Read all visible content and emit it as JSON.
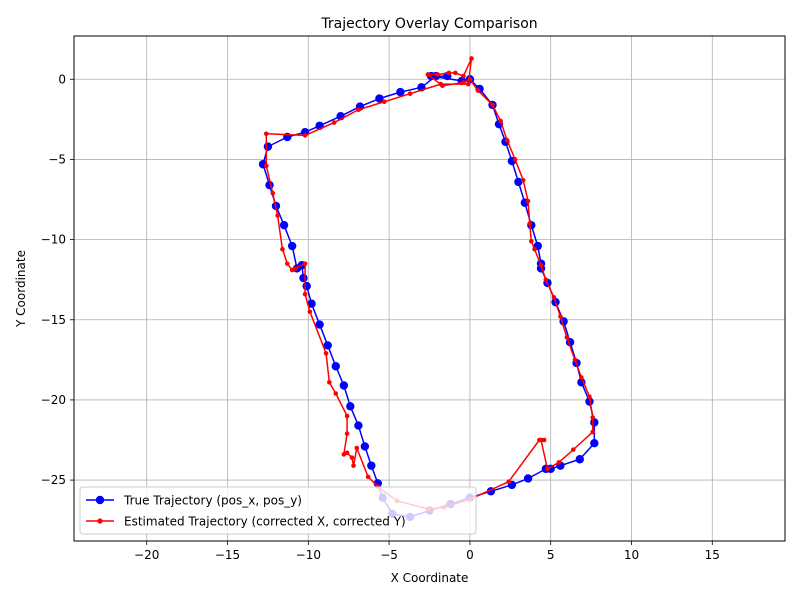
{
  "chart_data": {
    "type": "line",
    "title": "Trajectory Overlay Comparison",
    "xlabel": "X Coordinate",
    "ylabel": "Y Coordinate",
    "xlim": [
      -24.5,
      19.5
    ],
    "ylim": [
      -28.8,
      2.7
    ],
    "xticks": [
      -20,
      -15,
      -10,
      -5,
      0,
      5,
      10,
      15
    ],
    "yticks": [
      0,
      -5,
      -10,
      -15,
      -20,
      -25
    ],
    "grid": true,
    "legend_position": "lower-left",
    "series": [
      {
        "name": "True Trajectory (pos_x, pos_y)",
        "color": "#0000ff",
        "marker": "circle",
        "x": [
          0.0,
          0.6,
          1.4,
          1.8,
          2.2,
          2.6,
          3.0,
          3.4,
          3.8,
          4.2,
          4.4,
          4.4,
          4.8,
          5.3,
          5.8,
          6.2,
          6.6,
          6.9,
          7.4,
          7.7,
          7.7,
          6.8,
          5.6,
          5.0,
          4.7,
          3.6,
          2.6,
          1.3,
          0.0,
          -1.2,
          -2.5,
          -3.7,
          -4.8,
          -5.4,
          -5.7,
          -6.1,
          -6.5,
          -6.9,
          -7.4,
          -7.8,
          -8.3,
          -8.8,
          -9.3,
          -9.8,
          -10.1,
          -10.3,
          -10.4,
          -10.7,
          -11.0,
          -11.5,
          -12.0,
          -12.4,
          -12.8,
          -12.5,
          -11.3,
          -10.2,
          -9.3,
          -8.0,
          -6.8,
          -5.6,
          -4.3,
          -3.0,
          -2.1,
          -1.4,
          -2.4,
          -0.5,
          0.0
        ],
        "y": [
          0.0,
          -0.6,
          -1.6,
          -2.8,
          -3.9,
          -5.1,
          -6.4,
          -7.7,
          -9.1,
          -10.4,
          -11.5,
          -11.8,
          -12.7,
          -13.9,
          -15.1,
          -16.4,
          -17.7,
          -18.9,
          -20.1,
          -21.4,
          -22.7,
          -23.7,
          -24.1,
          -24.3,
          -24.3,
          -24.9,
          -25.3,
          -25.7,
          -26.1,
          -26.5,
          -26.9,
          -27.3,
          -27.1,
          -26.1,
          -25.2,
          -24.1,
          -22.9,
          -21.6,
          -20.4,
          -19.1,
          -17.9,
          -16.6,
          -15.3,
          -14.0,
          -12.9,
          -12.4,
          -11.6,
          -11.8,
          -10.4,
          -9.1,
          -7.9,
          -6.6,
          -5.3,
          -4.2,
          -3.6,
          -3.3,
          -2.9,
          -2.3,
          -1.7,
          -1.2,
          -0.8,
          -0.5,
          0.2,
          0.2,
          0.2,
          -0.1,
          0.0
        ]
      },
      {
        "name": "Estimated Trajectory (corrected X, corrected Y)",
        "color": "#ff0000",
        "marker": "dot",
        "x": [
          0.0,
          0.5,
          1.4,
          1.9,
          2.3,
          2.8,
          3.3,
          3.6,
          3.7,
          3.8,
          4.0,
          4.4,
          4.7,
          5.2,
          5.6,
          6.0,
          6.5,
          6.9,
          7.4,
          7.6,
          7.6,
          6.4,
          5.5,
          4.8,
          4.4,
          4.6,
          4.3,
          2.4,
          0.0,
          -1.6,
          -2.6,
          -4.5,
          -5.7,
          -6.3,
          -7.0,
          -7.2,
          -7.3,
          -7.6,
          -7.8,
          -7.6,
          -7.6,
          -8.3,
          -8.7,
          -8.9,
          -9.9,
          -10.2,
          -10.2,
          -10.8,
          -11.0,
          -11.3,
          -11.6,
          -11.9,
          -12.2,
          -12.6,
          -12.6,
          -10.2,
          -8.4,
          -6.9,
          -5.3,
          -3.7,
          -1.8,
          -0.1,
          0.1,
          -0.4,
          -0.9,
          -1.3,
          -2.0,
          -2.6,
          -1.7,
          -0.4,
          0.0
        ],
        "y": [
          0.0,
          -0.7,
          -1.6,
          -2.6,
          -3.8,
          -5.0,
          -6.3,
          -7.6,
          -9.0,
          -10.1,
          -10.6,
          -11.6,
          -12.5,
          -13.6,
          -14.8,
          -16.1,
          -17.5,
          -18.6,
          -19.8,
          -21.1,
          -22.0,
          -23.1,
          -23.9,
          -24.3,
          -22.5,
          -22.5,
          -22.5,
          -25.1,
          -26.2,
          -26.7,
          -26.8,
          -26.3,
          -25.4,
          -24.8,
          -23.0,
          -24.1,
          -23.6,
          -23.3,
          -23.4,
          -22.1,
          -21.0,
          -19.6,
          -18.9,
          -17.1,
          -14.5,
          -13.4,
          -11.5,
          -11.8,
          -11.9,
          -11.5,
          -10.6,
          -8.5,
          -7.1,
          -5.4,
          -3.4,
          -3.5,
          -2.7,
          -1.9,
          -1.4,
          -0.9,
          -0.3,
          -0.3,
          1.3,
          0.2,
          0.4,
          0.4,
          0.3,
          0.3,
          -0.4,
          -0.2,
          0.0
        ]
      }
    ]
  }
}
